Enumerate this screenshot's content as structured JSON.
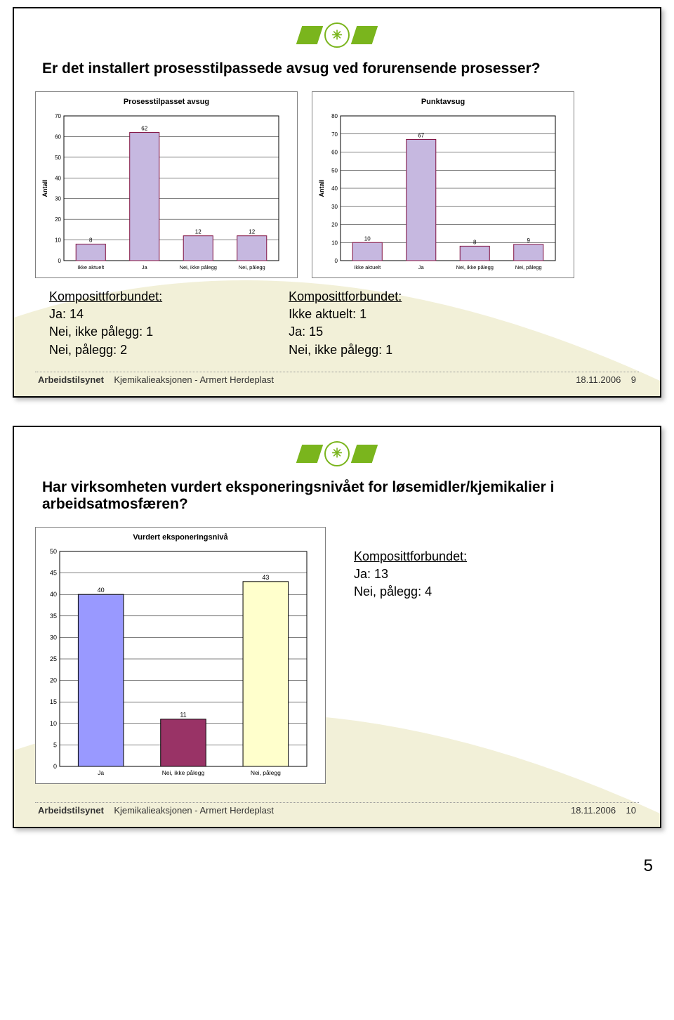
{
  "page_number": "5",
  "slide1": {
    "title": "Er det installert prosesstilpassede avsug ved forurensende prosesser?",
    "footer_label": "Arbeidstilsynet",
    "footer_text": "Kjemikalieaksjonen - Armert Herdeplast",
    "footer_date": "18.11.2006",
    "footer_num": "9",
    "chart1": {
      "title": "Prosesstilpasset avsug",
      "type": "bar",
      "ylabel": "Antall",
      "ylim": [
        0,
        70
      ],
      "ytick_step": 10,
      "categories": [
        "Ikke aktuelt",
        "Ja",
        "Nei, ikke pålegg",
        "Nei, pålegg"
      ],
      "values": [
        8,
        62,
        12,
        12
      ],
      "bar_fill": "#c6b8e0",
      "bar_border": "#801040",
      "background": "#ffffff",
      "grid_color": "#000000",
      "label_fontsize": 8
    },
    "chart2": {
      "title": "Punktavsug",
      "type": "bar",
      "ylabel": "Antall",
      "ylim": [
        0,
        80
      ],
      "ytick_step": 10,
      "categories": [
        "Ikke aktuelt",
        "Ja",
        "Nei, ikke pålegg",
        "Nei, pålegg"
      ],
      "values": [
        10,
        67,
        8,
        9
      ],
      "bar_fill": "#c6b8e0",
      "bar_border": "#801040",
      "background": "#ffffff",
      "grid_color": "#000000",
      "label_fontsize": 8
    },
    "legend1": {
      "heading": "Komposittforbundet:",
      "lines": [
        "Ja: 14",
        "Nei, ikke pålegg: 1",
        "Nei, pålegg: 2"
      ]
    },
    "legend2": {
      "heading": "Komposittforbundet:",
      "lines": [
        "Ikke aktuelt: 1",
        "Ja: 15",
        "Nei, ikke pålegg: 1"
      ]
    }
  },
  "slide2": {
    "title": "Har virksomheten vurdert eksponeringsnivået for løsemidler/kjemikalier i arbeidsatmosfæren?",
    "footer_label": "Arbeidstilsynet",
    "footer_text": "Kjemikalieaksjonen - Armert Herdeplast",
    "footer_date": "18.11.2006",
    "footer_num": "10",
    "chart": {
      "title": "Vurdert eksponeringsnivå",
      "type": "bar",
      "ylim": [
        0,
        50
      ],
      "ytick_step": 5,
      "categories": [
        "Ja",
        "Nei, ikke pålegg",
        "Nei, pålegg"
      ],
      "values": [
        40,
        11,
        43
      ],
      "bar_colors": [
        "#9999ff",
        "#993366",
        "#ffffcc"
      ],
      "bar_border": "#000000",
      "background": "#ffffff",
      "grid_color": "#000000",
      "label_fontsize": 9
    },
    "legend": {
      "heading": "Komposittforbundet:",
      "lines": [
        "Ja: 13",
        "Nei, pålegg: 4"
      ]
    }
  }
}
